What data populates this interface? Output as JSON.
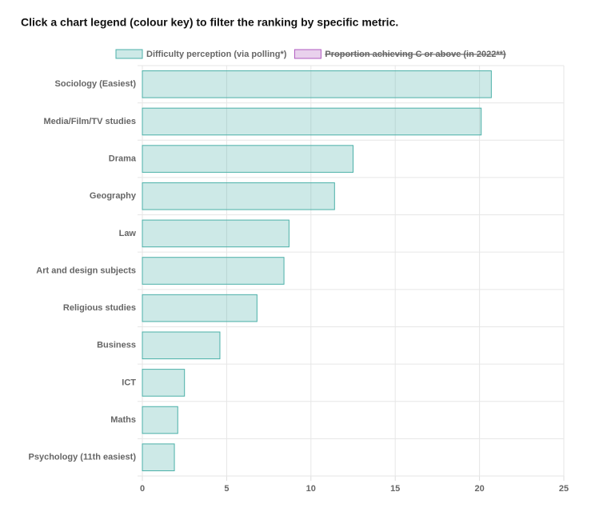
{
  "instruction": "Click a chart legend (colour key) to filter the ranking by specific metric.",
  "chart_data": {
    "type": "bar",
    "orientation": "horizontal",
    "categories": [
      "Sociology (Easiest)",
      "Media/Film/TV studies",
      "Drama",
      "Geography",
      "Law",
      "Art and design subjects",
      "Religious studies",
      "Business",
      "ICT",
      "Maths",
      "Psychology (11th easiest)"
    ],
    "series": [
      {
        "name": "Difficulty perception (via polling*)",
        "color": "#4bb0a8",
        "values": [
          20.7,
          20.1,
          12.5,
          11.4,
          8.7,
          8.4,
          6.8,
          4.6,
          2.5,
          2.1,
          1.9
        ]
      },
      {
        "name": "Proportion achieving C or above (in 2022**)",
        "color": "#b05ac0",
        "hidden": true
      }
    ],
    "xlim": [
      0,
      25
    ],
    "xticks": [
      0,
      5,
      10,
      15,
      20,
      25
    ],
    "grid": true,
    "legend": "top"
  }
}
